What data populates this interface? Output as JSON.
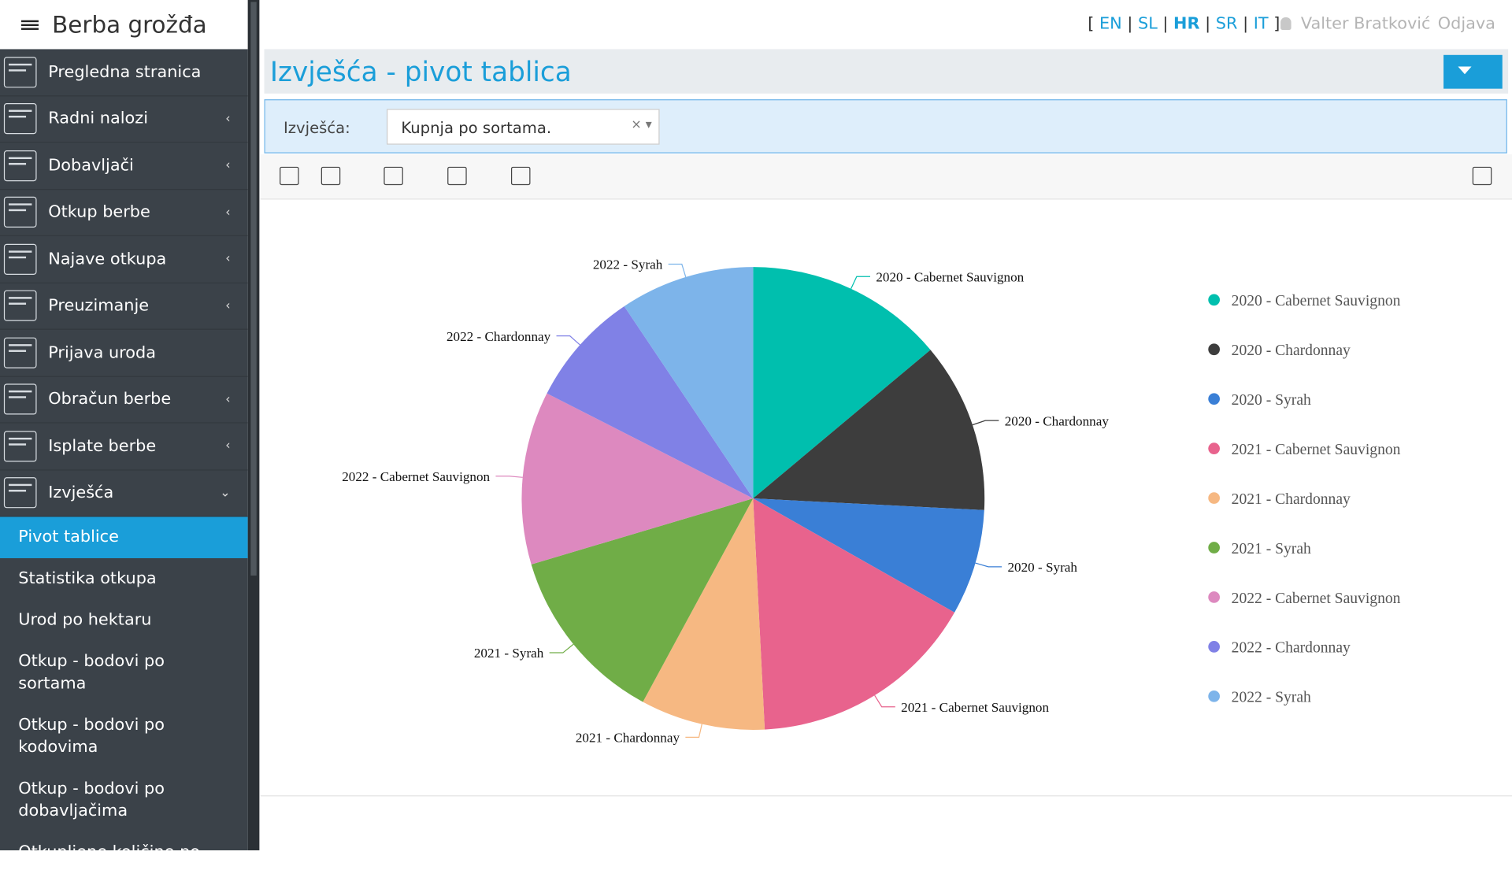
{
  "app": {
    "title": "Berba grožđa"
  },
  "language_bar": {
    "open": "[",
    "close": "]",
    "separator": "|",
    "items": [
      "EN",
      "SL",
      "HR",
      "SR",
      "IT"
    ],
    "active": "HR"
  },
  "user": {
    "name": "Valter Bratković",
    "logout": "Odjava"
  },
  "nav": {
    "items": [
      {
        "label": "Pregledna stranica",
        "submenu": false
      },
      {
        "label": "Radni nalozi",
        "submenu": true
      },
      {
        "label": "Dobavljači",
        "submenu": true
      },
      {
        "label": "Otkup berbe",
        "submenu": true
      },
      {
        "label": "Najave otkupa",
        "submenu": true
      },
      {
        "label": "Preuzimanje",
        "submenu": true
      },
      {
        "label": "Prijava uroda",
        "submenu": false
      },
      {
        "label": "Obračun berbe",
        "submenu": true
      },
      {
        "label": "Isplate berbe",
        "submenu": true
      },
      {
        "label": "Izvješća",
        "submenu": true,
        "expanded": true
      }
    ],
    "subitems": [
      "Pivot tablice",
      "Statistika otkupa",
      "Urod po hektaru",
      "Otkup - bodovi po sortama",
      "Otkup - bodovi po kodovima",
      "Otkup - bodovi po dobavljačima",
      "Otkupljene količine po dobavljačima i sortama"
    ],
    "active_subitem": "Pivot tablice"
  },
  "page_title": "Izvješća - pivot tablica",
  "filter": {
    "label": "Izvješća:",
    "value": "Kupnja po sortama."
  },
  "chart_data": {
    "type": "pie",
    "categories": [
      "2020 - Cabernet Sauvignon",
      "2020 - Chardonnay",
      "2020 - Syrah",
      "2021 - Cabernet Sauvignon",
      "2021 - Chardonnay",
      "2021 - Syrah",
      "2022 - Cabernet Sauvignon",
      "2022 - Chardonnay",
      "2022 - Syrah"
    ],
    "values": [
      13.9,
      11.9,
      7.4,
      16.0,
      8.7,
      12.5,
      12.1,
      8.1,
      9.4
    ],
    "colors": [
      "#00bfae",
      "#3d3d3d",
      "#3a7fd6",
      "#e8638d",
      "#f6b882",
      "#70ad47",
      "#dd89bf",
      "#8081e6",
      "#7db4ea"
    ],
    "legend": "right"
  }
}
